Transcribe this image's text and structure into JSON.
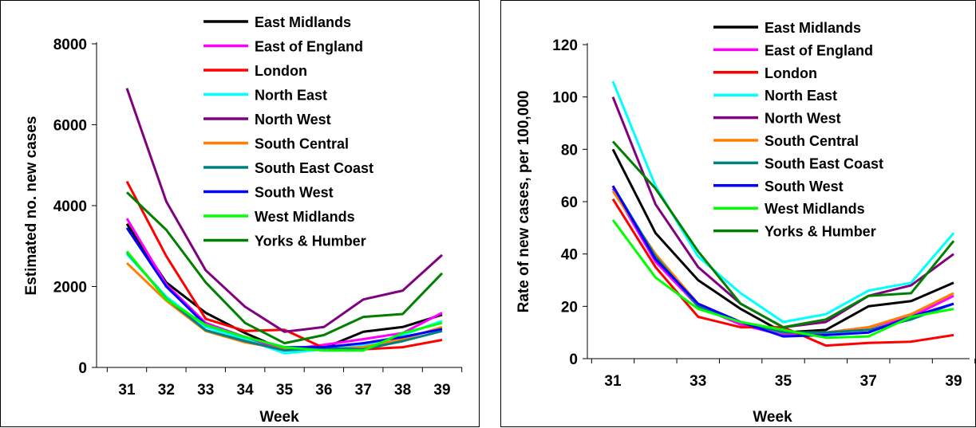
{
  "chart_data": [
    {
      "type": "line",
      "title": "",
      "xlabel": "Week",
      "ylabel": "Estimated no. new cases",
      "x": [
        31,
        32,
        33,
        34,
        35,
        36,
        37,
        38,
        39
      ],
      "xticks": [
        "31",
        "32",
        "33",
        "34",
        "35",
        "36",
        "37",
        "38",
        "39"
      ],
      "ylim": [
        0,
        8000
      ],
      "yticks": [
        "0",
        "2000",
        "4000",
        "6000",
        "8000"
      ],
      "grid": false,
      "legend_position": "top-right",
      "series": [
        {
          "name": "East Midlands",
          "color": "#000000",
          "values": [
            3550,
            2100,
            1350,
            850,
            430,
            480,
            880,
            1000,
            1300
          ]
        },
        {
          "name": "East of England",
          "color": "#ff00ff",
          "values": [
            3680,
            2050,
            1100,
            750,
            430,
            560,
            700,
            850,
            1350
          ]
        },
        {
          "name": "London",
          "color": "#ff0000",
          "values": [
            4600,
            2750,
            1200,
            900,
            930,
            480,
            450,
            500,
            680
          ]
        },
        {
          "name": "North East",
          "color": "#00ffff",
          "values": [
            2800,
            1750,
            1000,
            700,
            350,
            450,
            550,
            800,
            1150
          ]
        },
        {
          "name": "North West",
          "color": "#800080",
          "values": [
            6900,
            4100,
            2400,
            1500,
            880,
            1000,
            1680,
            1900,
            2780
          ]
        },
        {
          "name": "South Central",
          "color": "#ff8000",
          "values": [
            2580,
            1650,
            900,
            620,
            450,
            450,
            500,
            700,
            1000
          ]
        },
        {
          "name": "South East Coast",
          "color": "#008080",
          "values": [
            2850,
            1700,
            920,
            650,
            420,
            480,
            450,
            650,
            900
          ]
        },
        {
          "name": "South West",
          "color": "#0000ff",
          "values": [
            3450,
            2000,
            1050,
            750,
            500,
            500,
            600,
            750,
            950
          ]
        },
        {
          "name": "West Midlands",
          "color": "#00ff00",
          "values": [
            2870,
            1680,
            1050,
            750,
            500,
            420,
            420,
            850,
            1100
          ]
        },
        {
          "name": "Yorks & Humber",
          "color": "#008000",
          "values": [
            4330,
            3400,
            2100,
            1100,
            600,
            800,
            1250,
            1320,
            2330
          ]
        }
      ]
    },
    {
      "type": "line",
      "title": "",
      "xlabel": "Week",
      "ylabel": "Rate of new cases, per 100,000",
      "x": [
        31,
        32,
        33,
        34,
        35,
        36,
        37,
        38,
        39
      ],
      "xticks": [
        "31",
        "33",
        "35",
        "37",
        "39"
      ],
      "ylim": [
        0,
        120
      ],
      "yticks": [
        "0",
        "20",
        "40",
        "60",
        "80",
        "100",
        "120"
      ],
      "grid": false,
      "legend_position": "top-right",
      "series": [
        {
          "name": "East Midlands",
          "color": "#000000",
          "values": [
            80,
            48,
            30,
            19,
            10,
            11,
            20,
            22,
            29
          ]
        },
        {
          "name": "East of England",
          "color": "#ff00ff",
          "values": [
            65,
            37,
            20,
            13,
            9,
            10,
            12,
            16,
            24
          ]
        },
        {
          "name": "London",
          "color": "#ff0000",
          "values": [
            61,
            35,
            16,
            12,
            12,
            5,
            6,
            6.5,
            9
          ]
        },
        {
          "name": "North East",
          "color": "#00ffff",
          "values": [
            106,
            66,
            39,
            25,
            14,
            17,
            26,
            29,
            48
          ]
        },
        {
          "name": "North West",
          "color": "#800080",
          "values": [
            100,
            59,
            35,
            21,
            12,
            14,
            24,
            28,
            40
          ]
        },
        {
          "name": "South Central",
          "color": "#ff8000",
          "values": [
            64,
            40,
            21,
            14,
            10,
            10,
            12,
            17,
            25
          ]
        },
        {
          "name": "South East Coast",
          "color": "#008080",
          "values": [
            66,
            39,
            20,
            14,
            10,
            10,
            11,
            15,
            21
          ]
        },
        {
          "name": "South West",
          "color": "#0000ff",
          "values": [
            66,
            38,
            21,
            14,
            8.5,
            9,
            10,
            16,
            21
          ]
        },
        {
          "name": "West Midlands",
          "color": "#00ff00",
          "values": [
            53,
            31,
            19,
            14,
            11,
            8,
            8.5,
            16,
            19
          ]
        },
        {
          "name": "Yorks & Humber",
          "color": "#008000",
          "values": [
            83,
            65,
            41,
            21,
            12,
            15,
            24,
            25,
            45
          ]
        }
      ]
    }
  ]
}
